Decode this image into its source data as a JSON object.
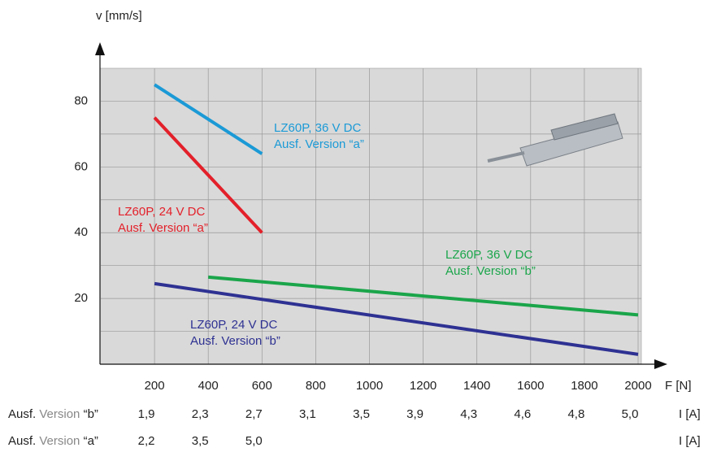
{
  "chart_data": {
    "type": "line",
    "y_label": "v [mm/s]",
    "x_label": "F [N]",
    "xlim": [
      0,
      2000
    ],
    "xticks": [
      200,
      400,
      600,
      800,
      1000,
      1200,
      1400,
      1600,
      1800,
      2000
    ],
    "ylim": [
      0,
      90
    ],
    "yticks": [
      20,
      40,
      60,
      80
    ],
    "y_minor_grid": [
      10,
      30,
      50,
      70
    ],
    "grid": true,
    "series": [
      {
        "name": "LZ60P, 36 V DC",
        "subname": "Ausf. Version “a”",
        "color": "#1b9ad6",
        "x": [
          200,
          600
        ],
        "values": [
          85,
          64
        ]
      },
      {
        "name": "LZ60P, 24 V DC",
        "subname": "Ausf. Version “a”",
        "color": "#e3202a",
        "x": [
          200,
          600
        ],
        "values": [
          75,
          40
        ]
      },
      {
        "name": "LZ60P, 36 V DC",
        "subname": "Ausf. Version “b”",
        "color": "#1aa54a",
        "x": [
          400,
          2000
        ],
        "values": [
          26.5,
          15
        ]
      },
      {
        "name": "LZ60P, 24 V DC",
        "subname": "Ausf. Version “b”",
        "color": "#2e3192",
        "x": [
          200,
          2000
        ],
        "values": [
          24.5,
          3
        ]
      }
    ],
    "current_rows": [
      {
        "label_parts": [
          "Ausf.",
          "Version",
          "“b”"
        ],
        "values": [
          "1,9",
          "2,3",
          "2,7",
          "3,1",
          "3,5",
          "3,9",
          "4,3",
          "4,6",
          "4,8",
          "5,0"
        ],
        "unit": "I [A]"
      },
      {
        "label_parts": [
          "Ausf.",
          "Version",
          "“a”"
        ],
        "values": [
          "2,2",
          "3,5",
          "5,0"
        ],
        "unit": "I [A]"
      }
    ]
  }
}
